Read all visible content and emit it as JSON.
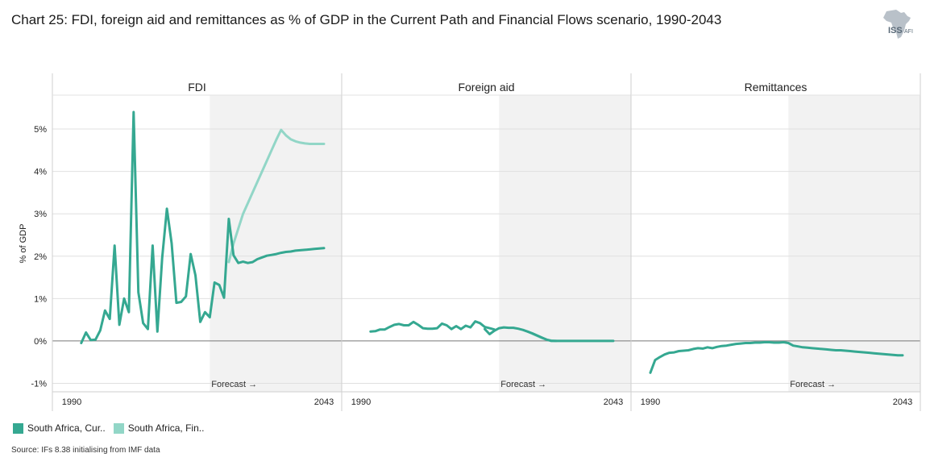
{
  "title": "Chart 25: FDI, foreign aid and remittances as % of GDP in the Current Path and Financial Flows scenario, 1990-2043",
  "logo": {
    "text_main": "ISS",
    "text_sub": "AFI"
  },
  "source": "Source: IFs 8.38 initialising from IMF data",
  "colors": {
    "current_path": "#35a891",
    "financial_flows": "#92d6c7",
    "forecast_shade": "#f2f2f2",
    "grid": "#e0e0e0",
    "zero_line": "#777777"
  },
  "legend": [
    {
      "label": "South Africa, Cur..",
      "color": "#35a891"
    },
    {
      "label": "South Africa, Fin..",
      "color": "#92d6c7"
    }
  ],
  "chart_data": {
    "type": "line",
    "ylabel": "% of GDP",
    "ylim": [
      -1.2,
      5.8
    ],
    "yticks": [
      -1,
      0,
      1,
      2,
      3,
      4,
      5
    ],
    "ytick_labels": [
      "-1%",
      "0%",
      "1%",
      "2%",
      "3%",
      "4%",
      "5%"
    ],
    "xlim": [
      1990,
      2043
    ],
    "xtick_labels": [
      "1990",
      "2043"
    ],
    "forecast_start": 2019,
    "forecast_label": "Forecast →",
    "panels": [
      {
        "title": "FDI",
        "series": [
          {
            "name": "South Africa, Cur..",
            "x": [
              1992,
              1993,
              1994,
              1995,
              1996,
              1997,
              1998,
              1999,
              2000,
              2001,
              2002,
              2003,
              2004,
              2005,
              2006,
              2007,
              2008,
              2009,
              2010,
              2011,
              2012,
              2013,
              2014,
              2015,
              2016,
              2017,
              2018,
              2019,
              2020,
              2021,
              2022,
              2023,
              2024,
              2025,
              2026,
              2027,
              2028,
              2029,
              2030,
              2031,
              2032,
              2033,
              2034,
              2035,
              2036,
              2037,
              2038,
              2039,
              2040,
              2041,
              2042,
              2043
            ],
            "y": [
              -0.05,
              0.2,
              0.02,
              0.03,
              0.25,
              0.72,
              0.52,
              2.25,
              0.38,
              1.0,
              0.68,
              5.4,
              1.15,
              0.42,
              0.28,
              2.25,
              0.22,
              1.95,
              3.12,
              2.3,
              0.9,
              0.92,
              1.05,
              2.05,
              1.55,
              0.45,
              0.68,
              0.56,
              1.38,
              1.32,
              1.02,
              2.88,
              2.02,
              1.84,
              1.87,
              1.84,
              1.86,
              1.93,
              1.97,
              2.01,
              2.03,
              2.05,
              2.08,
              2.1,
              2.11,
              2.13,
              2.14,
              2.15,
              2.16,
              2.17,
              2.18,
              2.19
            ]
          },
          {
            "name": "South Africa, Fin..",
            "x": [
              2023,
              2024,
              2025,
              2026,
              2027,
              2028,
              2029,
              2030,
              2031,
              2032,
              2033,
              2034,
              2035,
              2036,
              2037,
              2038,
              2039,
              2040,
              2041,
              2042,
              2043
            ],
            "y": [
              1.86,
              2.3,
              2.65,
              3.0,
              3.25,
              3.5,
              3.75,
              4.0,
              4.25,
              4.5,
              4.75,
              4.98,
              4.85,
              4.76,
              4.71,
              4.68,
              4.66,
              4.65,
              4.65,
              4.65,
              4.65
            ]
          }
        ]
      },
      {
        "title": "Foreign aid",
        "series": [
          {
            "name": "South Africa, Cur..",
            "x": [
              1992,
              1993,
              1994,
              1995,
              1996,
              1997,
              1998,
              1999,
              2000,
              2001,
              2002,
              2003,
              2004,
              2005,
              2006,
              2007,
              2008,
              2009,
              2010,
              2011,
              2012,
              2013,
              2014,
              2015,
              2016,
              2017,
              2018
            ],
            "y": [
              0.22,
              0.23,
              0.27,
              0.27,
              0.33,
              0.38,
              0.4,
              0.37,
              0.37,
              0.45,
              0.38,
              0.3,
              0.29,
              0.29,
              0.3,
              0.41,
              0.37,
              0.28,
              0.35,
              0.28,
              0.36,
              0.32,
              0.46,
              0.42,
              0.33,
              0.3,
              0.27
            ]
          },
          {
            "name": "South Africa, Cur..",
            "x": [
              2016,
              2017,
              2018,
              2019,
              2020,
              2021,
              2022,
              2023,
              2024,
              2025,
              2026,
              2027,
              2028,
              2029,
              2030,
              2031,
              2032,
              2033,
              2034,
              2035,
              2036,
              2037,
              2038,
              2039,
              2040,
              2041,
              2042,
              2043
            ],
            "y": [
              0.28,
              0.16,
              0.24,
              0.3,
              0.32,
              0.31,
              0.31,
              0.29,
              0.26,
              0.22,
              0.18,
              0.13,
              0.08,
              0.03,
              0.0,
              0.0,
              0.0,
              0.0,
              0.0,
              0.0,
              0.0,
              0.0,
              0.0,
              0.0,
              0.0,
              0.0,
              0.0,
              0.0
            ]
          },
          {
            "name": "South Africa, Fin..",
            "x": [
              2025,
              2026,
              2027,
              2028,
              2029,
              2030,
              2031
            ],
            "y": [
              0.22,
              0.17,
              0.12,
              0.07,
              0.03,
              0.01,
              0.0
            ]
          }
        ]
      },
      {
        "title": "Remittances",
        "series": [
          {
            "name": "South Africa, Cur..",
            "x": [
              1990,
              1991,
              1992,
              1993,
              1994,
              1995,
              1996,
              1997,
              1998,
              1999,
              2000,
              2001,
              2002,
              2003,
              2004,
              2005,
              2006,
              2007,
              2008,
              2009,
              2010,
              2011,
              2012,
              2013,
              2014,
              2015,
              2016,
              2017,
              2018,
              2019,
              2020,
              2021,
              2022,
              2023,
              2024,
              2025,
              2026,
              2027,
              2028,
              2029,
              2030,
              2031,
              2032,
              2033,
              2034,
              2035,
              2036,
              2037,
              2038,
              2039,
              2040,
              2041,
              2042,
              2043
            ],
            "y": [
              -0.75,
              -0.45,
              -0.38,
              -0.32,
              -0.28,
              -0.27,
              -0.24,
              -0.23,
              -0.22,
              -0.19,
              -0.17,
              -0.18,
              -0.15,
              -0.17,
              -0.14,
              -0.12,
              -0.11,
              -0.09,
              -0.07,
              -0.06,
              -0.05,
              -0.05,
              -0.04,
              -0.04,
              -0.03,
              -0.03,
              -0.04,
              -0.04,
              -0.03,
              -0.05,
              -0.11,
              -0.13,
              -0.15,
              -0.16,
              -0.17,
              -0.18,
              -0.19,
              -0.2,
              -0.21,
              -0.22,
              -0.22,
              -0.23,
              -0.24,
              -0.25,
              -0.26,
              -0.27,
              -0.28,
              -0.29,
              -0.3,
              -0.31,
              -0.32,
              -0.33,
              -0.34,
              -0.34
            ]
          }
        ]
      }
    ]
  }
}
